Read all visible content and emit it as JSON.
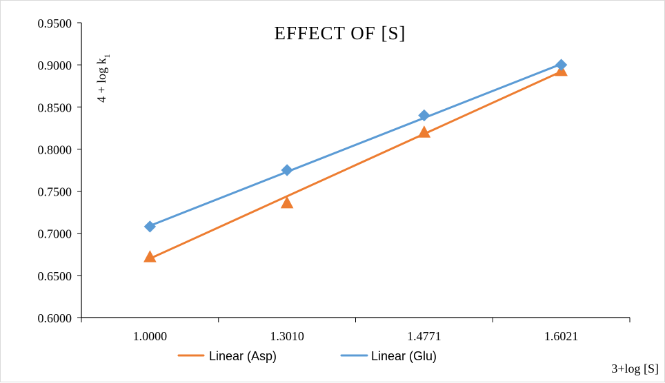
{
  "chart_data": {
    "type": "scatter",
    "title": "EFFECT OF [S]",
    "xlabel": "3+log [S]",
    "ylabel_main": "4 + log k",
    "ylabel_sub": "1",
    "categories": [
      "1.0000",
      "1.3010",
      "1.4771",
      "1.6021"
    ],
    "y_ticks": [
      "0.6000",
      "0.6500",
      "0.7000",
      "0.7500",
      "0.8000",
      "0.8500",
      "0.9000",
      "0.9500"
    ],
    "ylim": [
      0.6,
      0.95
    ],
    "grid": false,
    "legend_position": "bottom",
    "series": [
      {
        "name": "Asp",
        "marker": "triangle",
        "color": "#ED7D31",
        "values": [
          0.671,
          0.735,
          0.819,
          0.892
        ],
        "trendline": {
          "label": "Linear (Asp)",
          "values": [
            0.67,
            0.744,
            0.818,
            0.892
          ]
        }
      },
      {
        "name": "Glu",
        "marker": "diamond",
        "color": "#5B9BD5",
        "values": [
          0.708,
          0.775,
          0.84,
          0.9
        ],
        "trendline": {
          "label": "Linear (Glu)",
          "values": [
            0.709,
            0.773,
            0.837,
            0.901
          ]
        }
      }
    ]
  }
}
